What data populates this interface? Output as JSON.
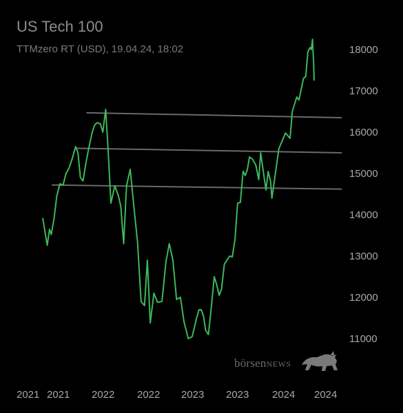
{
  "header": {
    "title": "US Tech 100",
    "subtitle": "TTMzero RT (USD), 19.04.24, 18:02"
  },
  "watermark": {
    "prefix": "börsen",
    "suffix": "NEWS",
    "icon": "bull-icon"
  },
  "colors": {
    "background": "#000000",
    "line": "#3cb95a",
    "trendline": "#6a6a6a",
    "text": "#a8a8a8"
  },
  "chart_data": {
    "type": "line",
    "title": "US Tech 100",
    "subtitle": "TTMzero RT (USD), 19.04.24, 18:02",
    "xlabel": "",
    "ylabel": "",
    "x_tick_labels": [
      "2021",
      "2021",
      "2022",
      "2022",
      "2023",
      "2023",
      "2024",
      "2024"
    ],
    "y_ticks": [
      11000,
      12000,
      13000,
      14000,
      15000,
      16000,
      17000,
      18000
    ],
    "ylim": [
      10550,
      18400
    ],
    "xlim": [
      "2021-01-04",
      "2024-04-19"
    ],
    "grid": false,
    "y_axis_side": "right",
    "series": [
      {
        "values": [
          [
            "2021-01-04",
            13920
          ],
          [
            "2021-02-01",
            13260
          ],
          [
            "2021-02-15",
            13650
          ],
          [
            "2021-02-26",
            13520
          ],
          [
            "2021-03-15",
            13900
          ],
          [
            "2021-04-01",
            14450
          ],
          [
            "2021-04-20",
            14750
          ],
          [
            "2021-05-10",
            14720
          ],
          [
            "2021-05-28",
            15000
          ],
          [
            "2021-06-15",
            15120
          ],
          [
            "2021-07-05",
            15350
          ],
          [
            "2021-07-26",
            15650
          ],
          [
            "2021-08-10",
            15500
          ],
          [
            "2021-08-25",
            14900
          ],
          [
            "2021-09-10",
            14820
          ],
          [
            "2021-09-28",
            15250
          ],
          [
            "2021-10-15",
            15600
          ],
          [
            "2021-11-05",
            15980
          ],
          [
            "2021-11-22",
            16180
          ],
          [
            "2021-12-06",
            16230
          ],
          [
            "2021-12-27",
            16200
          ],
          [
            "2022-01-07",
            16000
          ],
          [
            "2022-01-18",
            16550
          ],
          [
            "2022-01-26",
            15700
          ],
          [
            "2022-02-07",
            14280
          ],
          [
            "2022-02-22",
            14700
          ],
          [
            "2022-03-08",
            14450
          ],
          [
            "2022-03-17",
            14200
          ],
          [
            "2022-03-28",
            13300
          ],
          [
            "2022-04-08",
            14700
          ],
          [
            "2022-04-22",
            15100
          ],
          [
            "2022-05-06",
            14200
          ],
          [
            "2022-05-20",
            13350
          ],
          [
            "2022-06-03",
            11900
          ],
          [
            "2022-06-16",
            11800
          ],
          [
            "2022-06-27",
            12900
          ],
          [
            "2022-07-08",
            11380
          ],
          [
            "2022-07-22",
            12100
          ],
          [
            "2022-08-05",
            11880
          ],
          [
            "2022-08-22",
            11900
          ],
          [
            "2022-09-06",
            12850
          ],
          [
            "2022-09-19",
            13300
          ],
          [
            "2022-10-03",
            12900
          ],
          [
            "2022-10-17",
            11950
          ],
          [
            "2022-11-01",
            12000
          ],
          [
            "2022-11-15",
            11400
          ],
          [
            "2022-12-01",
            11000
          ],
          [
            "2022-12-16",
            11050
          ],
          [
            "2023-01-03",
            11500
          ],
          [
            "2023-01-18",
            11700
          ],
          [
            "2023-02-02",
            11700
          ],
          [
            "2023-02-17",
            11550
          ],
          [
            "2023-03-03",
            11200
          ],
          [
            "2023-03-21",
            11100
          ],
          [
            "2023-04-10",
            11800
          ],
          [
            "2023-04-28",
            12500
          ],
          [
            "2023-05-15",
            12300
          ],
          [
            "2023-05-30",
            12050
          ],
          [
            "2023-06-15",
            12200
          ],
          [
            "2023-07-03",
            12800
          ],
          [
            "2023-07-20",
            12900
          ],
          [
            "2023-08-07",
            13000
          ],
          [
            "2023-08-24",
            12980
          ],
          [
            "2023-09-11",
            13400
          ],
          [
            "2023-09-28",
            14280
          ],
          [
            "2023-10-16",
            14300
          ],
          [
            "2023-11-03",
            15050
          ],
          [
            "2023-11-17",
            14950
          ],
          [
            "2023-12-01",
            15100
          ],
          [
            "2023-12-15",
            15400
          ],
          [
            "2024-01-02",
            15350
          ],
          [
            "2024-01-18",
            15200
          ],
          [
            "2024-01-31",
            14850
          ],
          [
            "2024-02-09",
            15500
          ],
          [
            "2024-02-22",
            15000
          ],
          [
            "2024-03-04",
            14600
          ],
          [
            "2024-03-14",
            15050
          ],
          [
            "2024-03-25",
            14800
          ],
          [
            "2024-03-31",
            14400
          ],
          [
            "2024-04-04",
            15600
          ],
          [
            "2024-04-07",
            15980
          ],
          [
            "2024-04-09",
            15850
          ],
          [
            "2024-04-10",
            16500
          ],
          [
            "2024-04-12",
            16850
          ],
          [
            "2024-04-13",
            16780
          ],
          [
            "2024-04-15",
            17300
          ],
          [
            "2024-04-16",
            17350
          ],
          [
            "2024-04-17",
            17950
          ],
          [
            "2024-04-18",
            18050
          ],
          [
            "2024-04-18T12:00",
            18000
          ],
          [
            "2024-04-19",
            18250
          ],
          [
            "2024-04-19T12:00",
            17700
          ],
          [
            "2024-04-19T18:02",
            17250
          ]
        ]
      }
    ],
    "trendlines": [
      {
        "start": [
          "2021-10-01",
          16470
        ],
        "end": [
          "2024-04-19T18:02",
          16350
        ]
      },
      {
        "start": [
          "2021-08-01",
          15610
        ],
        "end": [
          "2024-04-19T18:02",
          15500
        ]
      },
      {
        "start": [
          "2021-03-01",
          14720
        ],
        "end": [
          "2024-04-19T18:02",
          14620
        ]
      }
    ]
  }
}
